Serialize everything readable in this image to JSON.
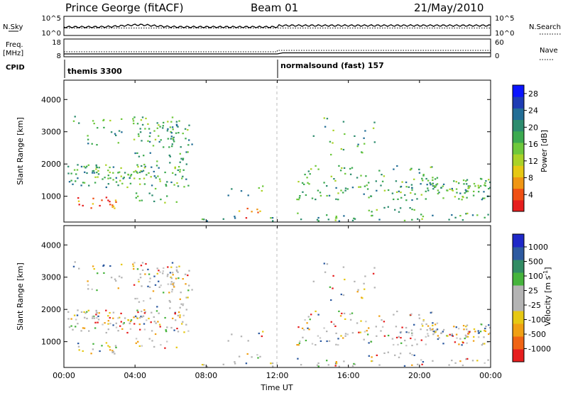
{
  "header": {
    "station": "Prince George (fitACF)",
    "beam": "Beam 01",
    "date": "21/May/2010"
  },
  "chart_data": [
    {
      "type": "line",
      "name": "nsky-nsearch-panel",
      "left_label": "N.Sky",
      "right_label": "N.Search",
      "left_ticks": [
        "10^5",
        "10^0"
      ],
      "right_ticks": [
        "10^5",
        "10^0"
      ],
      "scale": "log"
    },
    {
      "type": "line",
      "name": "freq-nave-panel",
      "left_label_1": "Freq.",
      "left_label_2": "[MHz]",
      "right_label": "Nave",
      "left_ticks": [
        "18",
        "8"
      ],
      "right_ticks": [
        "60",
        "0"
      ],
      "ylim_left": [
        8,
        18
      ],
      "ylim_right": [
        0,
        60
      ]
    },
    {
      "type": "table",
      "name": "cpid-panel",
      "label": "CPID",
      "segments": [
        {
          "start_hour": 0,
          "text": "themis 3300"
        },
        {
          "start_hour": 12,
          "text": "normalsound (fast) 157"
        }
      ]
    },
    {
      "type": "heatmap",
      "name": "power-panel",
      "ylabel": "Slant Range [km]",
      "ylim": [
        200,
        4600
      ],
      "yticks": [
        "1000",
        "2000",
        "3000",
        "4000"
      ],
      "colorbar_label": "Power [dB]",
      "colorbar_ticks": [
        "4",
        "8",
        "12",
        "16",
        "20",
        "24",
        "28"
      ],
      "colorbar_range": [
        0,
        30
      ],
      "colors": [
        "#0a14ff",
        "#1e3cb4",
        "#236e96",
        "#2d8c6e",
        "#3caa50",
        "#6ec83c",
        "#aad228",
        "#e6c814",
        "#f09614",
        "#f05014",
        "#e61e1e"
      ]
    },
    {
      "type": "heatmap",
      "name": "velocity-panel",
      "ylabel": "Slant Range [km]",
      "ylim": [
        200,
        4600
      ],
      "yticks": [
        "1000",
        "2000",
        "3000",
        "4000"
      ],
      "colorbar_label": "Velocity [m s",
      "colorbar_label_sup": "-1",
      "colorbar_label_end": "]",
      "colorbar_ticks": [
        "1000",
        "500",
        "100",
        "25",
        "-25",
        "-100",
        "-500",
        "-1000"
      ],
      "colors": [
        "#1e28c8",
        "#2d5aa0",
        "#328c64",
        "#46b43c",
        "#b4b4b4",
        "#b4b4b4",
        "#e6c814",
        "#f0a014",
        "#f06414",
        "#e61e1e"
      ]
    }
  ],
  "xaxis": {
    "label": "Time UT",
    "ticks": [
      "00:00",
      "04:00",
      "08:00",
      "12:00",
      "16:00",
      "20:00",
      "00:00"
    ],
    "range_hours": [
      0,
      24
    ]
  }
}
